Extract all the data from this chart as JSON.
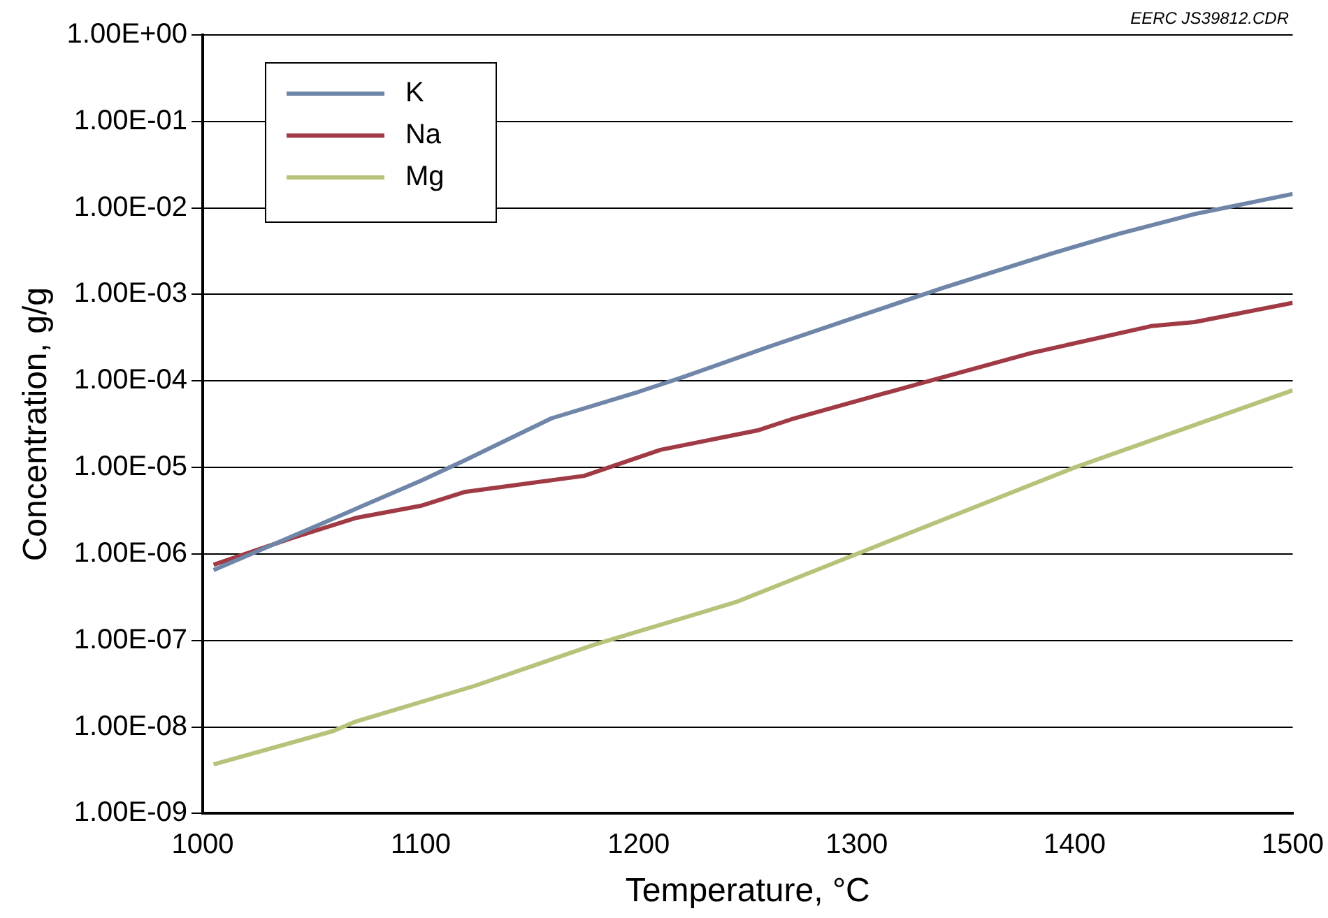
{
  "chart_data": {
    "type": "line",
    "xlabel": "Temperature, °C",
    "ylabel": "Concentration, g/g",
    "annotations": [
      "EERC JS39812.CDR"
    ],
    "log": "y",
    "grid": "y",
    "legend": "top left",
    "marker": "none",
    "line_style": "solid",
    "xlim": [
      1000,
      1500
    ],
    "xticks": [
      1000,
      1100,
      1200,
      1300,
      1400,
      1500
    ],
    "ylim": [
      1e-09,
      1
    ],
    "yticks": [
      {
        "value": 1e-09,
        "label": "1.00E-09"
      },
      {
        "value": 1e-08,
        "label": "1.00E-08"
      },
      {
        "value": 1e-07,
        "label": "1.00E-07"
      },
      {
        "value": 1e-06,
        "label": "1.00E-06"
      },
      {
        "value": 1e-05,
        "label": "1.00E-05"
      },
      {
        "value": 0.0001,
        "label": "1.00E-04"
      },
      {
        "value": 0.001,
        "label": "1.00E-03"
      },
      {
        "value": 0.01,
        "label": "1.00E-02"
      },
      {
        "value": 0.1,
        "label": "1.00E-01"
      },
      {
        "value": 1,
        "label": "1.00E+00"
      }
    ],
    "series": [
      {
        "name": "K",
        "color": "#6f86a8",
        "x": [
          1005,
          1050,
          1100,
          1120,
          1160,
          1200,
          1220,
          1260,
          1300,
          1340,
          1390,
          1420,
          1455,
          1500
        ],
        "values": [
          6.5e-07,
          2e-06,
          7e-06,
          1.2e-05,
          3.7e-05,
          7.5e-05,
          0.00011,
          0.00025,
          0.00055,
          0.0012,
          0.003,
          0.005,
          0.0085,
          0.0145
        ]
      },
      {
        "name": "Na",
        "color": "#a03a44",
        "x": [
          1005,
          1040,
          1070,
          1100,
          1120,
          1175,
          1210,
          1255,
          1270,
          1330,
          1380,
          1435,
          1455,
          1500
        ],
        "values": [
          7.5e-07,
          1.5e-06,
          2.6e-06,
          3.6e-06,
          5.2e-06,
          8e-06,
          1.6e-05,
          2.7e-05,
          3.6e-05,
          9.5e-05,
          0.00021,
          0.00043,
          0.00048,
          0.0008
        ]
      },
      {
        "name": "Mg",
        "color": "#b6c37a",
        "x": [
          1005,
          1060,
          1070,
          1125,
          1180,
          1245,
          1270,
          1300,
          1400,
          1500
        ],
        "values": [
          3.7e-09,
          9e-09,
          1.15e-08,
          3e-08,
          9e-08,
          2.8e-07,
          5e-07,
          1e-06,
          1e-05,
          7.8e-05
        ]
      }
    ]
  }
}
